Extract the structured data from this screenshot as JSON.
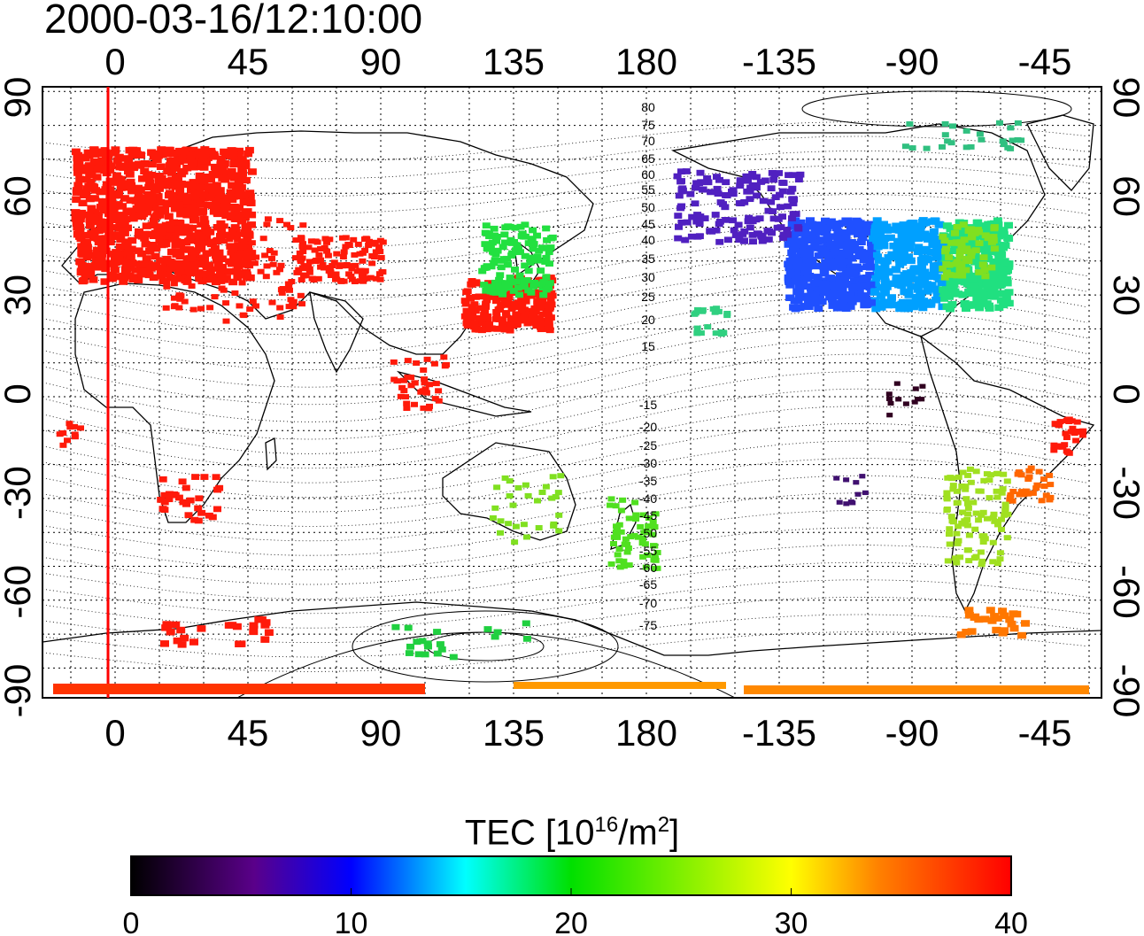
{
  "title": "2000-03-16/12:10:00",
  "map": {
    "top_ticks": [
      "0",
      "45",
      "90",
      "135",
      "180",
      "-135",
      "-90",
      "-45"
    ],
    "bottom_ticks": [
      "0",
      "45",
      "90",
      "135",
      "180",
      "-135",
      "-90",
      "-45"
    ],
    "left_ticks": [
      "90",
      "60",
      "30",
      "0",
      "-30",
      "-60",
      "-90"
    ],
    "right_ticks": [
      "90",
      "60",
      "30",
      "0",
      "-30",
      "-60",
      "-90"
    ],
    "contour_labels": [
      "80",
      "75",
      "70",
      "65",
      "60",
      "55",
      "50",
      "45",
      "40",
      "35",
      "30",
      "25",
      "20",
      "15",
      "-15",
      "-20",
      "-25",
      "-30",
      "-35",
      "-40",
      "-45",
      "-50",
      "-55",
      "-60",
      "-65",
      "-70",
      "-75"
    ],
    "marker_line_color": "#ff0000"
  },
  "colorbar": {
    "title_prefix": "TEC  [10",
    "title_exp1": "16",
    "title_mid": "/m",
    "title_exp2": "2",
    "title_suffix": "]",
    "tick_labels": [
      "0",
      "10",
      "20",
      "30",
      "40"
    ],
    "colors": [
      "#000000",
      "#5a008a",
      "#0000ff",
      "#00ffff",
      "#00e000",
      "#ffff00",
      "#ff8000",
      "#ff0000"
    ]
  }
}
